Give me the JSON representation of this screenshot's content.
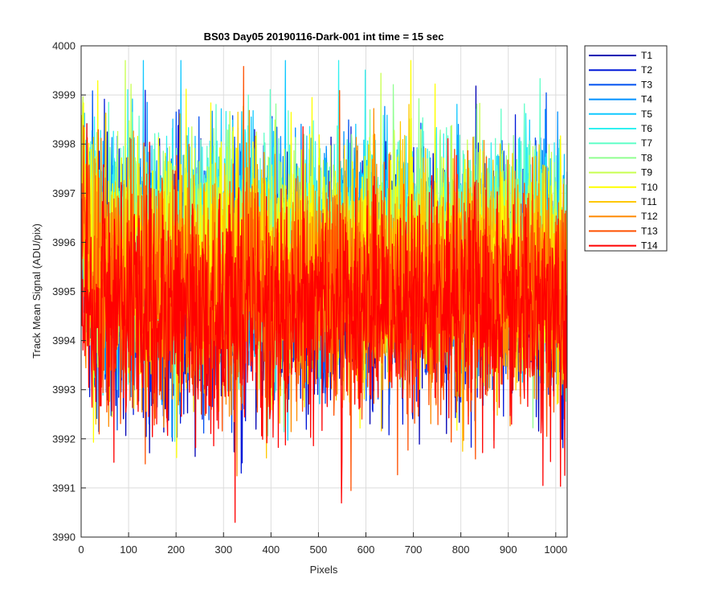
{
  "chart_data": {
    "type": "line",
    "title": "BS03 Day05 20190116-Dark-001 int time = 15 sec",
    "xlabel": "Pixels",
    "ylabel": "Track Mean Signal (ADU/pix)",
    "xlim": [
      0,
      1024
    ],
    "ylim": [
      3990,
      4000
    ],
    "x_ticks": [
      0,
      100,
      200,
      300,
      400,
      500,
      600,
      700,
      800,
      900,
      1000
    ],
    "y_ticks": [
      3990,
      3991,
      3992,
      3993,
      3994,
      3995,
      3996,
      3997,
      3998,
      3999,
      4000
    ],
    "grid": true,
    "legend_position": "outside-top-right",
    "n_points": 1024,
    "series": [
      {
        "name": "T1",
        "color": "#0000b4",
        "mean": 3995.1,
        "spread": 1.25
      },
      {
        "name": "T2",
        "color": "#0018d8",
        "mean": 3995.2,
        "spread": 1.2
      },
      {
        "name": "T3",
        "color": "#0050f0",
        "mean": 3995.4,
        "spread": 1.2
      },
      {
        "name": "T4",
        "color": "#0090ff",
        "mean": 3995.6,
        "spread": 1.15
      },
      {
        "name": "T5",
        "color": "#10c8ff",
        "mean": 3995.8,
        "spread": 1.15
      },
      {
        "name": "T6",
        "color": "#30f0f0",
        "mean": 3995.9,
        "spread": 1.1
      },
      {
        "name": "T7",
        "color": "#60ffc8",
        "mean": 3995.9,
        "spread": 1.1
      },
      {
        "name": "T8",
        "color": "#90ff90",
        "mean": 3995.8,
        "spread": 1.1
      },
      {
        "name": "T9",
        "color": "#c8ff50",
        "mean": 3995.7,
        "spread": 1.1
      },
      {
        "name": "T10",
        "color": "#ffff00",
        "mean": 3995.5,
        "spread": 1.15
      },
      {
        "name": "T11",
        "color": "#ffc800",
        "mean": 3995.3,
        "spread": 1.15
      },
      {
        "name": "T12",
        "color": "#ff8c00",
        "mean": 3995.1,
        "spread": 1.2
      },
      {
        "name": "T13",
        "color": "#ff5000",
        "mean": 3994.9,
        "spread": 1.2
      },
      {
        "name": "T14",
        "color": "#ff0000",
        "mean": 3994.6,
        "spread": 1.25
      }
    ]
  }
}
